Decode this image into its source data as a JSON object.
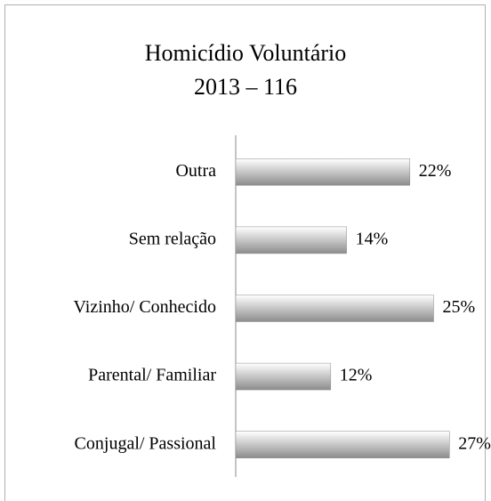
{
  "chart_data": {
    "type": "barh",
    "title": "Homicídio Voluntário",
    "subtitle": "2013 – 116",
    "categories": [
      "Outra",
      "Sem relação",
      "Vizinho/ Conhecido",
      "Parental/ Familiar",
      "Conjugal/ Passional"
    ],
    "values": [
      22,
      14,
      25,
      12,
      27
    ],
    "value_labels": [
      "22%",
      "14%",
      "25%",
      "12%",
      "27%"
    ],
    "color": "#8c8c8c",
    "xlim": [
      0,
      30
    ]
  }
}
